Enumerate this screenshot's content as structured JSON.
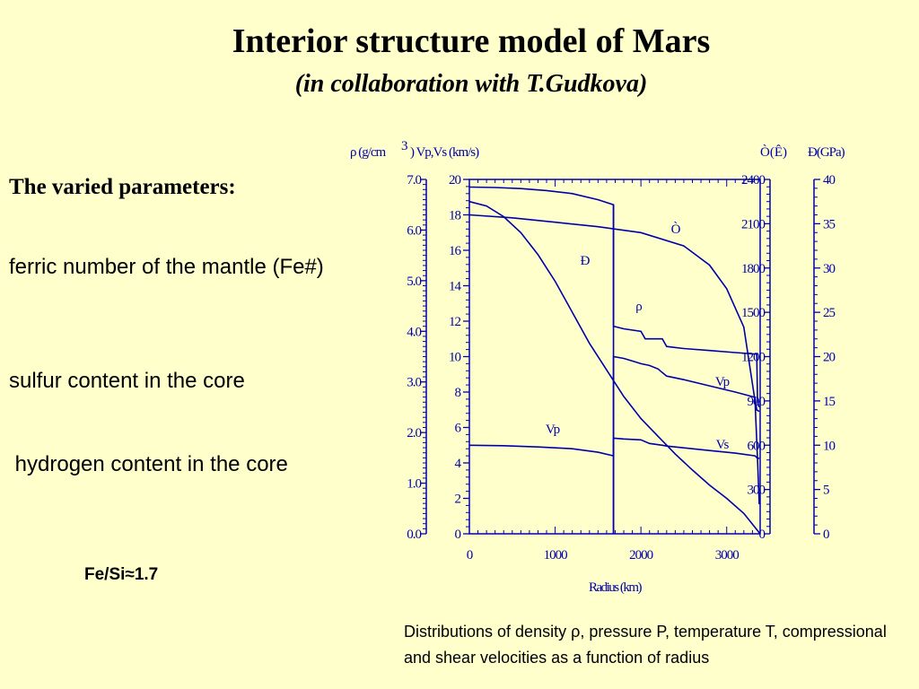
{
  "header": {
    "title": "Interior structure model of Mars",
    "subtitle": "(in collaboration with T.Gudkova)"
  },
  "left": {
    "heading": "The varied parameters:",
    "items": [
      "ferric number of the mantle (Fe#)",
      "sulfur content in the core",
      " hydrogen content in the core"
    ],
    "fe_si": "Fe/Si≈1.7"
  },
  "caption": "Distributions of density ρ, pressure P, temperature T, compressional and shear velocities as a function of radius",
  "colors": {
    "background": "#ffffcc",
    "plot": "#0000aa"
  },
  "chart_data": {
    "type": "line",
    "xlabel": "Radius (km)",
    "xlim": [
      0,
      3390
    ],
    "x_ticks": [
      "0",
      "1000",
      "2000",
      "3000"
    ],
    "axes": {
      "rho": {
        "label": "ρ (g/cm",
        "sup": "3",
        "range": [
          0,
          7
        ],
        "ticks": [
          "0.0",
          "1.0",
          "2.0",
          "3.0",
          "4.0",
          "5.0",
          "6.0",
          "7.0"
        ]
      },
      "vel": {
        "label": ") Vp,Vs (km/s)",
        "range": [
          0,
          20
        ],
        "ticks": [
          "0",
          "2",
          "4",
          "6",
          "8",
          "10",
          "12",
          "14",
          "16",
          "18",
          "20"
        ]
      },
      "temp": {
        "label": "Ò(Ê)",
        "range": [
          0,
          2400
        ],
        "ticks": [
          "0",
          "300",
          "600",
          "900",
          "1200",
          "1500",
          "1800",
          "2100",
          "2400"
        ]
      },
      "pres": {
        "label": "Ð(GPa)",
        "range": [
          0,
          40
        ],
        "ticks": [
          "0",
          "5",
          "10",
          "15",
          "20",
          "25",
          "30",
          "35",
          "40"
        ]
      }
    },
    "series": [
      {
        "label": "ρ",
        "axis": "rho",
        "x": [
          0,
          300,
          600,
          900,
          1200,
          1500,
          1680,
          1680,
          1800,
          2000,
          2050,
          2250,
          2300,
          2500,
          2800,
          3100,
          3350,
          3360,
          3380
        ],
        "y": [
          6.85,
          6.84,
          6.82,
          6.78,
          6.72,
          6.6,
          6.5,
          4.1,
          4.05,
          4.0,
          3.85,
          3.85,
          3.7,
          3.66,
          3.62,
          3.58,
          3.55,
          2.6,
          2.5
        ]
      },
      {
        "label": "Vp",
        "axis": "vel",
        "x": [
          0,
          400,
          800,
          1200,
          1500,
          1680,
          1680,
          1800,
          1900,
          2000,
          2100,
          2200,
          2250,
          2300,
          2400,
          2500,
          2800,
          3100,
          3330,
          3350,
          3380
        ],
        "y": [
          5.0,
          4.97,
          4.9,
          4.8,
          4.6,
          4.4,
          10.0,
          9.9,
          9.75,
          9.6,
          9.5,
          9.3,
          9.1,
          8.9,
          8.8,
          8.7,
          8.35,
          8.0,
          7.7,
          7.0,
          6.9
        ]
      },
      {
        "label": "Vs",
        "axis": "vel",
        "x": [
          1680,
          1680,
          1800,
          2000,
          2100,
          2250,
          2300,
          2500,
          2800,
          3100,
          3330,
          3350,
          3380
        ],
        "y": [
          0,
          5.4,
          5.35,
          5.3,
          5.1,
          5.0,
          4.95,
          4.85,
          4.7,
          4.55,
          4.4,
          4.3,
          4.25
        ]
      },
      {
        "label": "Ò",
        "axis": "temp",
        "x": [
          0,
          500,
          1000,
          1500,
          2000,
          2500,
          2800,
          3000,
          3200,
          3330,
          3360,
          3380
        ],
        "y": [
          2160,
          2140,
          2110,
          2080,
          2040,
          1950,
          1820,
          1660,
          1400,
          900,
          500,
          200
        ]
      },
      {
        "label": "Ð",
        "axis": "pres",
        "x": [
          0,
          200,
          400,
          600,
          800,
          1000,
          1200,
          1400,
          1600,
          1800,
          2000,
          2200,
          2400,
          2600,
          2800,
          3000,
          3200,
          3390
        ],
        "y": [
          37.5,
          37.0,
          35.8,
          34.0,
          31.5,
          28.5,
          25.0,
          21.5,
          18.5,
          15.5,
          13.0,
          11.0,
          9.0,
          7.2,
          5.5,
          4.0,
          2.3,
          0
        ]
      }
    ],
    "labels": {
      "T": "Ò",
      "P": "Ð",
      "rho": "ρ",
      "Vp_upper": "Vp",
      "Vp_lower": "Vp",
      "Vs": "Vs"
    }
  }
}
